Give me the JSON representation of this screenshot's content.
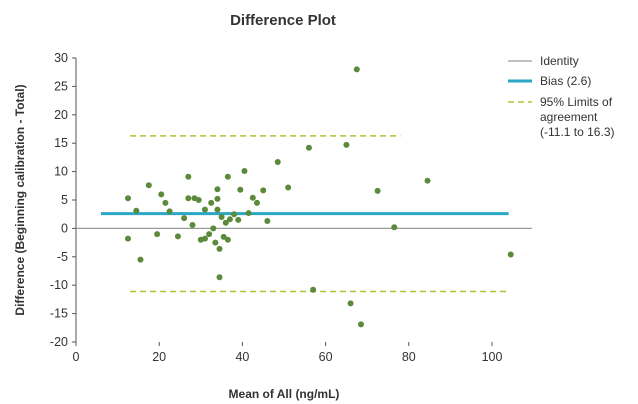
{
  "chart_data": {
    "type": "scatter",
    "title": "Difference Plot",
    "xlabel": "Mean of All (ng/mL)",
    "ylabel": "Difference (Beginning calibration - Total)",
    "xlim": [
      0,
      105
    ],
    "ylim": [
      -20,
      30
    ],
    "x_ticks": [
      "0",
      "20",
      "40",
      "60",
      "80",
      "100"
    ],
    "y_ticks": [
      "30",
      "25",
      "20",
      "15",
      "10",
      "5",
      "0",
      "-5",
      "-10",
      "-15",
      "-20"
    ],
    "grid": false,
    "legend_position": "top-right",
    "legend": {
      "identity": "Identity",
      "bias": "Bias (2.6)",
      "loa_line1": "95% Limits of",
      "loa_line2": "agreement",
      "loa_line3": "(-11.1 to 16.3)"
    },
    "colors": {
      "points": "#5a8a3a",
      "bias": "#2aa6c6",
      "loa": "#a8c832",
      "identity": "#9a9a9a"
    },
    "identity": {
      "y": 0
    },
    "bias": {
      "y": 2.6,
      "x_range": [
        6,
        104
      ]
    },
    "loa_upper": {
      "y": 16.3,
      "x_range": [
        13,
        78
      ]
    },
    "loa_lower": {
      "y": -11.1,
      "x_range": [
        13,
        104
      ]
    },
    "series": [
      {
        "points": [
          [
            12.5,
            5.3
          ],
          [
            12.5,
            -1.8
          ],
          [
            14.5,
            3.1
          ],
          [
            15.5,
            -5.5
          ],
          [
            17.5,
            7.6
          ],
          [
            19.5,
            -1.0
          ],
          [
            20.5,
            6.0
          ],
          [
            21.5,
            4.5
          ],
          [
            22.5,
            3.0
          ],
          [
            24.5,
            -1.4
          ],
          [
            26.0,
            1.8
          ],
          [
            27.0,
            5.3
          ],
          [
            27.0,
            9.1
          ],
          [
            28.0,
            0.6
          ],
          [
            28.5,
            5.3
          ],
          [
            29.5,
            5.0
          ],
          [
            30.0,
            -2.0
          ],
          [
            31.0,
            3.3
          ],
          [
            31.0,
            -1.8
          ],
          [
            32.0,
            -1.0
          ],
          [
            32.5,
            4.5
          ],
          [
            33.0,
            0.0
          ],
          [
            33.5,
            -2.5
          ],
          [
            34.0,
            5.2
          ],
          [
            34.0,
            3.3
          ],
          [
            34.0,
            6.9
          ],
          [
            34.5,
            -3.6
          ],
          [
            34.5,
            -8.6
          ],
          [
            35.0,
            2.0
          ],
          [
            35.5,
            -1.5
          ],
          [
            36.0,
            1.0
          ],
          [
            36.5,
            9.1
          ],
          [
            36.5,
            -2.0
          ],
          [
            37.0,
            1.6
          ],
          [
            38.0,
            2.5
          ],
          [
            39.0,
            1.5
          ],
          [
            39.5,
            6.8
          ],
          [
            40.5,
            10.1
          ],
          [
            41.5,
            2.7
          ],
          [
            42.5,
            5.4
          ],
          [
            43.5,
            4.5
          ],
          [
            45.0,
            6.7
          ],
          [
            46.0,
            1.3
          ],
          [
            48.5,
            11.7
          ],
          [
            51.0,
            7.2
          ],
          [
            56.0,
            14.2
          ],
          [
            57.0,
            -10.8
          ],
          [
            65.0,
            14.7
          ],
          [
            66.0,
            -13.2
          ],
          [
            67.5,
            28.0
          ],
          [
            68.5,
            -16.9
          ],
          [
            72.5,
            6.6
          ],
          [
            76.5,
            0.2
          ],
          [
            84.5,
            8.4
          ],
          [
            104.5,
            -4.6
          ]
        ]
      }
    ]
  }
}
